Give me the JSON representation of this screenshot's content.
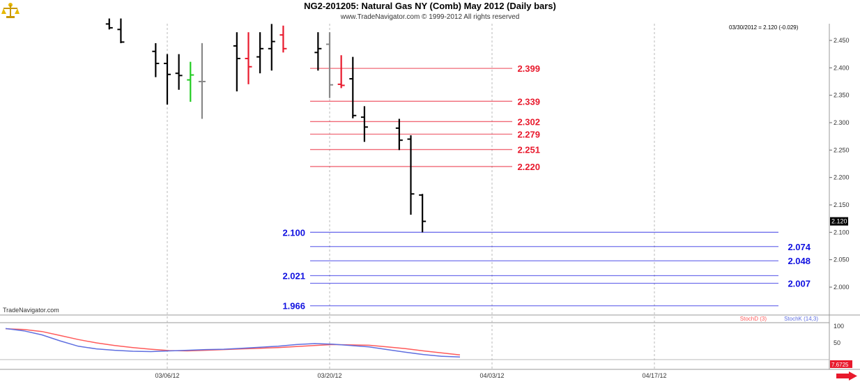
{
  "header": {
    "title": "NG2-201205:  Natural Gas NY (Comb) May 2012  (Daily bars)",
    "subtitle": "www.TradeNavigator.com © 1999-2012 All rights reserved",
    "last_price_note": "03/30/2012 = 2.120 (-0.029)",
    "watermark": "TradeNavigator.com"
  },
  "icons": {
    "logo": "scale-icon",
    "scroll": "right-arrow-icon"
  },
  "colors": {
    "resistance": "#e8192c",
    "support": "#1010e0",
    "stochD": "#ff5a5a",
    "stochK": "#5f6fe0"
  },
  "chart_data": {
    "type": "ohlc-bar",
    "price_axis": {
      "ticks": [
        "2.450",
        "2.400",
        "2.350",
        "2.300",
        "2.250",
        "2.200",
        "2.150",
        "2.100",
        "2.050",
        "2.000"
      ],
      "range": [
        1.95,
        2.48
      ]
    },
    "date_axis": {
      "ticks": [
        "03/06/12",
        "03/20/12",
        "04/03/12",
        "04/17/12"
      ]
    },
    "current_price_label": "2.120",
    "bars": [
      {
        "date": "03/01/12",
        "high": 2.49,
        "low": 2.47,
        "open": 2.48,
        "close": 2.473,
        "color": "black"
      },
      {
        "date": "03/02/12",
        "high": 2.49,
        "low": 2.445,
        "open": 2.47,
        "close": 2.447,
        "color": "black"
      },
      {
        "date": "03/05/12",
        "high": 2.445,
        "low": 2.383,
        "open": 2.43,
        "close": 2.408,
        "color": "black"
      },
      {
        "date": "03/06/12",
        "high": 2.425,
        "low": 2.333,
        "open": 2.408,
        "close": 2.388,
        "color": "black"
      },
      {
        "date": "03/07/12",
        "high": 2.425,
        "low": 2.36,
        "open": 2.39,
        "close": 2.386,
        "color": "black"
      },
      {
        "date": "03/08/12",
        "high": 2.411,
        "low": 2.338,
        "open": 2.378,
        "close": 2.387,
        "color": "green"
      },
      {
        "date": "03/09/12",
        "high": 2.445,
        "low": 2.307,
        "open": 2.375,
        "close": 2.375,
        "color": "gray"
      },
      {
        "date": "03/12/12",
        "high": 2.465,
        "low": 2.357,
        "open": 2.44,
        "close": 2.417,
        "color": "black"
      },
      {
        "date": "03/13/12",
        "high": 2.465,
        "low": 2.37,
        "open": 2.417,
        "close": 2.402,
        "color": "red"
      },
      {
        "date": "03/14/12",
        "high": 2.465,
        "low": 2.39,
        "open": 2.42,
        "close": 2.435,
        "color": "black"
      },
      {
        "date": "03/15/12",
        "high": 2.48,
        "low": 2.395,
        "open": 2.435,
        "close": 2.448,
        "color": "black"
      },
      {
        "date": "03/16/12",
        "high": 2.477,
        "low": 2.428,
        "open": 2.46,
        "close": 2.435,
        "color": "red"
      },
      {
        "date": "03/19/12",
        "high": 2.465,
        "low": 2.395,
        "open": 2.428,
        "close": 2.435,
        "color": "black"
      },
      {
        "date": "03/20/12",
        "high": 2.465,
        "low": 2.345,
        "open": 2.443,
        "close": 2.369,
        "color": "gray"
      },
      {
        "date": "03/21/12",
        "high": 2.423,
        "low": 2.363,
        "open": 2.37,
        "close": 2.368,
        "color": "red"
      },
      {
        "date": "03/22/12",
        "high": 2.42,
        "low": 2.308,
        "open": 2.38,
        "close": 2.313,
        "color": "black"
      },
      {
        "date": "03/23/12",
        "high": 2.33,
        "low": 2.265,
        "open": 2.31,
        "close": 2.292,
        "color": "black"
      },
      {
        "date": "03/26/12",
        "high": 2.307,
        "low": 2.25,
        "open": 2.29,
        "close": 2.268,
        "color": "black"
      },
      {
        "date": "03/27/12",
        "high": 2.277,
        "low": 2.132,
        "open": 2.27,
        "close": 2.17,
        "color": "black"
      },
      {
        "date": "03/28/12",
        "high": 2.17,
        "low": 2.1,
        "open": 2.168,
        "close": 2.12,
        "color": "black"
      }
    ],
    "resistance_levels": [
      "2.399",
      "2.339",
      "2.302",
      "2.279",
      "2.251",
      "2.220"
    ],
    "support_levels": [
      "2.100",
      "2.074",
      "2.048",
      "2.021",
      "2.007",
      "1.966"
    ],
    "stochastic": {
      "legend": [
        {
          "name": "StochD (3)",
          "color": "#ff5a5a"
        },
        {
          "name": "StochK (14,3)",
          "color": "#5f6fe0"
        }
      ],
      "axis_ticks": [
        "100",
        "50"
      ],
      "current_label": "7.6725",
      "stochD": [
        92,
        90,
        84,
        72,
        60,
        50,
        42,
        36,
        31,
        27,
        26,
        28,
        30,
        32,
        34,
        36,
        39,
        42,
        45,
        44,
        43,
        38,
        33,
        26,
        20,
        14
      ],
      "stochK": [
        93,
        86,
        74,
        56,
        40,
        32,
        28,
        25,
        24,
        26,
        28,
        30,
        31,
        34,
        37,
        40,
        45,
        48,
        46,
        42,
        38,
        30,
        22,
        15,
        10,
        7.7
      ]
    }
  }
}
